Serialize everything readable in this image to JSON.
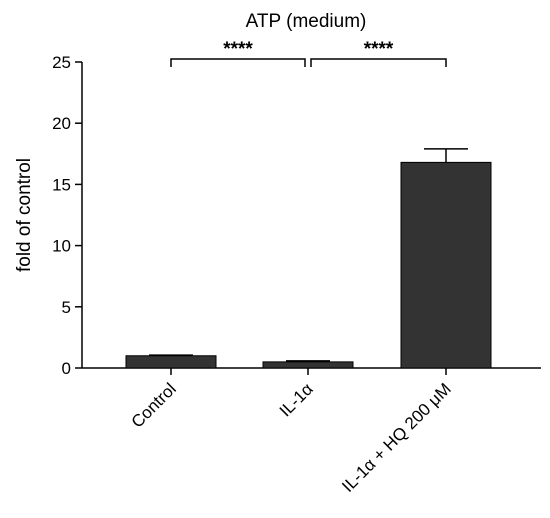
{
  "chart_data": {
    "type": "bar",
    "title": "ATP (medium)",
    "ylabel": "fold of control",
    "xlabel": "",
    "ylim": [
      0,
      25
    ],
    "yticks": [
      0,
      5,
      10,
      15,
      20,
      25
    ],
    "categories": [
      "Control",
      "IL-1α",
      "IL-1α + HQ 200 μM"
    ],
    "values": [
      1.0,
      0.5,
      16.8
    ],
    "errors": [
      0.05,
      0.08,
      1.1
    ],
    "bar_color": "#333333",
    "significance": [
      {
        "from": 0,
        "to": 1,
        "label": "****"
      },
      {
        "from": 1,
        "to": 2,
        "label": "****"
      }
    ]
  }
}
